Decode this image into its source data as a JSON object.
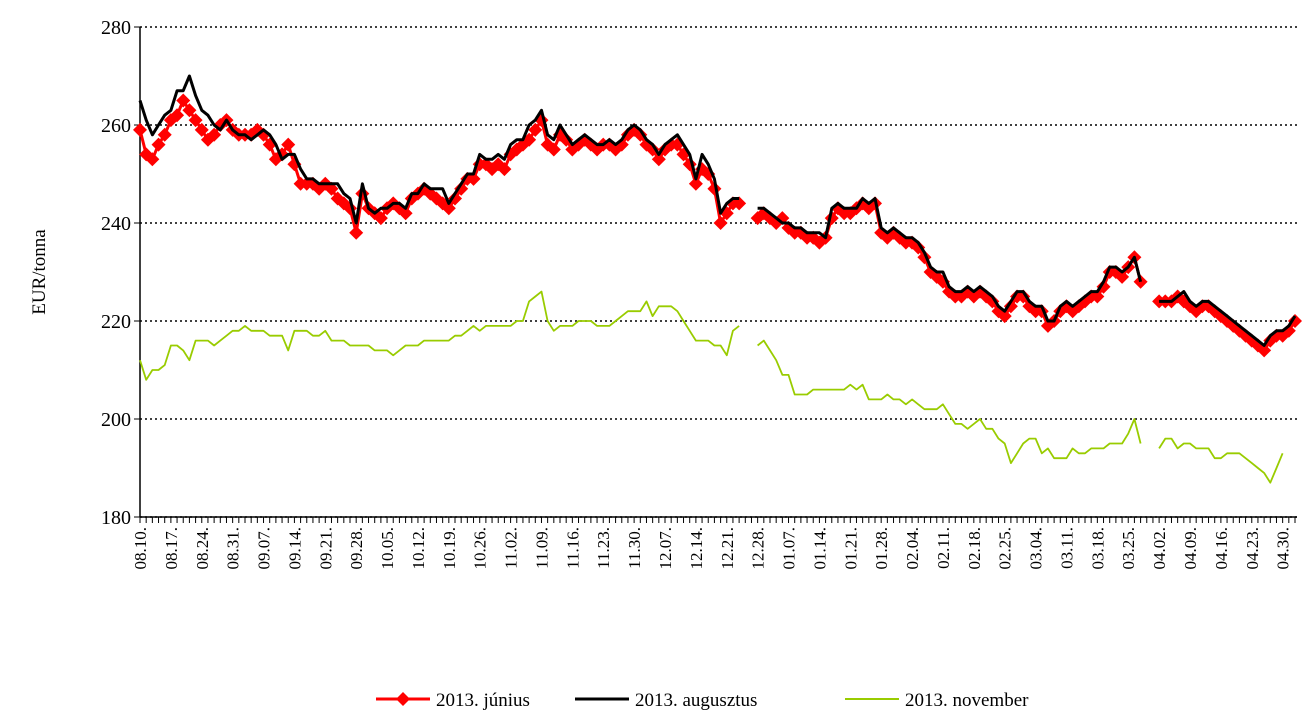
{
  "chart_data": {
    "type": "line",
    "y_label": "EUR/tonna",
    "categories": [
      "08.10.",
      null,
      null,
      null,
      null,
      "08.17.",
      null,
      null,
      null,
      null,
      "08.24.",
      null,
      null,
      null,
      null,
      "08.31.",
      null,
      null,
      null,
      null,
      "09.07.",
      null,
      null,
      null,
      null,
      "09.14.",
      null,
      null,
      null,
      null,
      "09.21.",
      null,
      null,
      null,
      null,
      "09.28.",
      null,
      null,
      null,
      null,
      "10.05.",
      null,
      null,
      null,
      null,
      "10.12.",
      null,
      null,
      null,
      null,
      "10.19.",
      null,
      null,
      null,
      null,
      "10.26.",
      null,
      null,
      null,
      null,
      "11.02.",
      null,
      null,
      null,
      null,
      "11.09.",
      null,
      null,
      null,
      null,
      "11.16.",
      null,
      null,
      null,
      null,
      "11.23.",
      null,
      null,
      null,
      null,
      "11.30.",
      null,
      null,
      null,
      null,
      "12.07.",
      null,
      null,
      null,
      null,
      "12.14.",
      null,
      null,
      null,
      null,
      "12.21.",
      null,
      null,
      null,
      null,
      "12.28.",
      null,
      null,
      null,
      null,
      "01.07.",
      null,
      null,
      null,
      null,
      "01.14.",
      null,
      null,
      null,
      null,
      "01.21.",
      null,
      null,
      null,
      null,
      "01.28.",
      null,
      null,
      null,
      null,
      "02.04.",
      null,
      null,
      null,
      null,
      "02.11.",
      null,
      null,
      null,
      null,
      "02.18.",
      null,
      null,
      null,
      null,
      "02.25.",
      null,
      null,
      null,
      null,
      "03.04.",
      null,
      null,
      null,
      null,
      "03.11.",
      null,
      null,
      null,
      null,
      "03.18.",
      null,
      null,
      null,
      null,
      "03.25.",
      null,
      null,
      null,
      null,
      "04.02.",
      null,
      null,
      null,
      null,
      "04.09.",
      null,
      null,
      null,
      null,
      "04.16.",
      null,
      null,
      null,
      null,
      "04.23.",
      null,
      null,
      null,
      null,
      "04.30.",
      null,
      null
    ],
    "series": [
      {
        "name": "2013. június",
        "color": "#ff0000",
        "marker": "diamond",
        "values": [
          259,
          254,
          253,
          256,
          258,
          261,
          262,
          265,
          263,
          261,
          259,
          257,
          258,
          260,
          261,
          259,
          258,
          258,
          258,
          259,
          258,
          256,
          253,
          254,
          256,
          252,
          248,
          248,
          248,
          247,
          248,
          247,
          245,
          244,
          243,
          238,
          246,
          243,
          242,
          241,
          243,
          244,
          243,
          242,
          245,
          246,
          247,
          246,
          245,
          244,
          243,
          245,
          247,
          249,
          249,
          252,
          252,
          251,
          252,
          251,
          254,
          255,
          256,
          257,
          259,
          261,
          256,
          255,
          258,
          257,
          255,
          256,
          257,
          256,
          255,
          256,
          256,
          255,
          256,
          258,
          259,
          258,
          256,
          255,
          253,
          255,
          256,
          256,
          254,
          252,
          248,
          251,
          250,
          247,
          240,
          242,
          244,
          244,
          null,
          null,
          241,
          242,
          241,
          240,
          241,
          239,
          238,
          238,
          237,
          237,
          236,
          237,
          241,
          243,
          242,
          242,
          243,
          244,
          243,
          244,
          238,
          237,
          238,
          237,
          236,
          236,
          235,
          233,
          230,
          229,
          228,
          226,
          225,
          225,
          226,
          225,
          226,
          225,
          224,
          222,
          221,
          223,
          225,
          225,
          223,
          222,
          222,
          219,
          220,
          222,
          223,
          222,
          223,
          224,
          225,
          225,
          227,
          230,
          230,
          229,
          231,
          233,
          228,
          null,
          null,
          224,
          224,
          224,
          225,
          224,
          223,
          222,
          223,
          223,
          222,
          221,
          220,
          219,
          218,
          217,
          216,
          215,
          214,
          216,
          217,
          217,
          218,
          220
        ]
      },
      {
        "name": "2013. augusztus",
        "color": "#000000",
        "values": [
          265,
          261,
          258,
          260,
          262,
          263,
          267,
          267,
          270,
          266,
          263,
          262,
          260,
          259,
          261,
          259,
          258,
          258,
          257,
          258,
          259,
          258,
          256,
          253,
          254,
          254,
          251,
          249,
          249,
          248,
          248,
          248,
          248,
          246,
          245,
          240,
          248,
          243,
          242,
          243,
          243,
          244,
          244,
          243,
          246,
          246,
          248,
          247,
          247,
          247,
          244,
          246,
          248,
          250,
          250,
          254,
          253,
          253,
          254,
          253,
          256,
          257,
          257,
          260,
          261,
          263,
          258,
          257,
          260,
          258,
          256,
          257,
          258,
          257,
          256,
          256,
          257,
          256,
          257,
          259,
          260,
          259,
          257,
          256,
          254,
          256,
          257,
          258,
          256,
          254,
          249,
          254,
          252,
          249,
          242,
          244,
          245,
          245,
          null,
          null,
          243,
          243,
          242,
          241,
          240,
          240,
          239,
          239,
          238,
          238,
          238,
          237,
          243,
          244,
          243,
          243,
          243,
          245,
          244,
          245,
          239,
          238,
          239,
          238,
          237,
          237,
          236,
          234,
          231,
          230,
          230,
          227,
          226,
          226,
          227,
          226,
          227,
          226,
          225,
          223,
          222,
          224,
          226,
          226,
          224,
          223,
          223,
          220,
          220,
          223,
          224,
          223,
          224,
          225,
          226,
          226,
          228,
          231,
          231,
          230,
          231,
          233,
          228,
          null,
          null,
          224,
          224,
          224,
          225,
          226,
          224,
          223,
          224,
          224,
          223,
          222,
          221,
          220,
          219,
          218,
          217,
          216,
          215,
          217,
          218,
          218,
          219,
          221
        ]
      },
      {
        "name": "2013. november",
        "color": "#99cc00",
        "values": [
          212,
          208,
          210,
          210,
          211,
          215,
          215,
          214,
          212,
          216,
          216,
          216,
          215,
          216,
          217,
          218,
          218,
          219,
          218,
          218,
          218,
          217,
          217,
          217,
          214,
          218,
          218,
          218,
          217,
          217,
          218,
          216,
          216,
          216,
          215,
          215,
          215,
          215,
          214,
          214,
          214,
          213,
          214,
          215,
          215,
          215,
          216,
          216,
          216,
          216,
          216,
          217,
          217,
          218,
          219,
          218,
          219,
          219,
          219,
          219,
          219,
          220,
          220,
          224,
          225,
          226,
          220,
          218,
          219,
          219,
          219,
          220,
          220,
          220,
          219,
          219,
          219,
          220,
          221,
          222,
          222,
          222,
          224,
          221,
          223,
          223,
          223,
          222,
          220,
          218,
          216,
          216,
          216,
          215,
          215,
          213,
          218,
          219,
          null,
          null,
          215,
          216,
          214,
          212,
          209,
          209,
          205,
          205,
          205,
          206,
          206,
          206,
          206,
          206,
          206,
          207,
          206,
          207,
          204,
          204,
          204,
          205,
          204,
          204,
          203,
          204,
          203,
          202,
          202,
          202,
          203,
          201,
          199,
          199,
          198,
          199,
          200,
          198,
          198,
          196,
          195,
          191,
          193,
          195,
          196,
          196,
          193,
          194,
          192,
          192,
          192,
          194,
          193,
          193,
          194,
          194,
          194,
          195,
          195,
          195,
          197,
          200,
          195,
          null,
          null,
          194,
          196,
          196,
          194,
          195,
          195,
          194,
          194,
          194,
          192,
          192,
          193,
          193,
          193,
          192,
          191,
          190,
          189,
          187,
          190,
          193,
          null,
          194
        ]
      }
    ],
    "ylim": [
      180,
      280
    ],
    "yticks": [
      180,
      200,
      220,
      240,
      260,
      280
    ],
    "grid": true,
    "legend": "bottom"
  }
}
